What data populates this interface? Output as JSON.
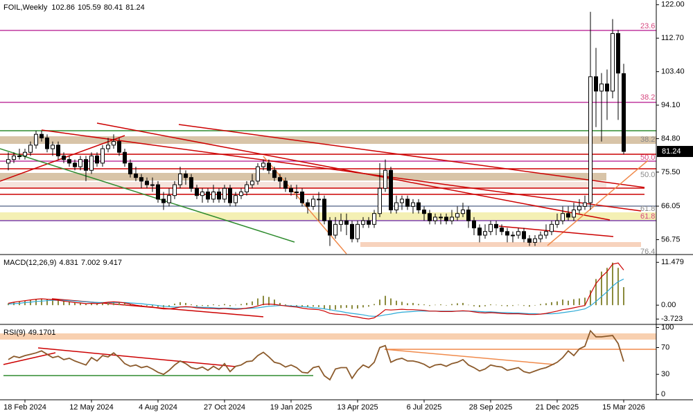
{
  "chart_data": [
    {
      "type": "candlestick",
      "symbol": "FOIL,Weekly",
      "open": [
        78,
        79,
        80,
        80,
        81,
        83,
        86,
        85,
        82,
        83,
        80,
        79,
        78,
        77,
        79,
        76,
        80,
        78,
        82,
        83,
        84,
        81,
        78,
        75,
        74,
        73,
        72,
        72,
        68,
        67,
        69,
        72,
        75,
        74,
        71,
        69,
        70,
        68,
        70,
        68,
        71,
        67,
        69,
        70,
        72,
        73,
        77,
        78,
        76,
        74,
        73,
        71,
        70,
        70,
        67,
        66,
        68,
        68,
        62,
        58,
        61,
        62,
        61,
        57,
        61,
        62,
        61,
        64,
        71,
        76,
        65,
        67,
        68,
        66,
        67,
        65,
        64,
        62,
        63,
        63,
        62,
        63,
        64,
        65,
        62,
        60,
        58,
        59,
        61,
        60,
        59,
        58,
        58,
        59,
        57,
        56,
        57,
        58,
        59,
        61,
        62,
        64,
        63,
        65,
        66,
        67,
        102,
        98,
        100,
        98,
        114,
        102.86
      ],
      "high": [
        81,
        81,
        82,
        82,
        84,
        87,
        87,
        86,
        84,
        84,
        81,
        80,
        79,
        80,
        80,
        81,
        81,
        83,
        85,
        86,
        85,
        82,
        79,
        77,
        75,
        74,
        74,
        73,
        70,
        71,
        73,
        77,
        76,
        75,
        72,
        71,
        71,
        72,
        71,
        72,
        72,
        70,
        71,
        73,
        75,
        78,
        79,
        79,
        77,
        75,
        74,
        72,
        72,
        71,
        68,
        69,
        70,
        69,
        63,
        63,
        64,
        64,
        62,
        62,
        63,
        63,
        65,
        78,
        79,
        77,
        69,
        69,
        69,
        68,
        68,
        66,
        65,
        64,
        64,
        64,
        65,
        66,
        67,
        66,
        63,
        61,
        61,
        62,
        62,
        61,
        60,
        59,
        60,
        60,
        58,
        58,
        59,
        61,
        62,
        64,
        66,
        66,
        67,
        68,
        69,
        120,
        110,
        103,
        104,
        118,
        115,
        105.59
      ],
      "low": [
        76,
        78,
        79,
        79,
        80,
        82,
        84,
        81,
        80,
        79,
        78,
        77,
        76,
        76,
        73,
        75,
        77,
        77,
        81,
        82,
        80,
        77,
        74,
        73,
        71,
        71,
        70,
        67,
        65,
        66,
        68,
        71,
        72,
        70,
        68,
        67,
        67,
        67,
        67,
        67,
        66,
        66,
        68,
        69,
        71,
        72,
        76,
        75,
        73,
        71,
        70,
        69,
        68,
        66,
        64,
        65,
        62,
        61,
        55,
        57,
        59,
        58,
        56,
        56,
        60,
        60,
        60,
        63,
        70,
        64,
        64,
        65,
        65,
        64,
        64,
        62,
        61,
        61,
        61,
        61,
        61,
        62,
        63,
        60,
        58,
        56,
        57,
        58,
        58,
        58,
        56,
        56,
        57,
        56,
        55,
        55,
        56,
        57,
        58,
        60,
        61,
        62,
        62,
        64,
        65,
        65,
        88,
        84,
        90,
        96,
        90,
        80.41
      ],
      "close": [
        79,
        80,
        80,
        81,
        83,
        86,
        85,
        82,
        83,
        80,
        79,
        78,
        77,
        79,
        76,
        80,
        78,
        82,
        83,
        84,
        81,
        78,
        75,
        74,
        73,
        72,
        72,
        68,
        67,
        69,
        72,
        75,
        74,
        71,
        69,
        70,
        68,
        70,
        68,
        71,
        67,
        69,
        70,
        72,
        73,
        77,
        78,
        76,
        74,
        73,
        71,
        70,
        70,
        67,
        66,
        68,
        68,
        62,
        58,
        61,
        62,
        61,
        57,
        61,
        62,
        61,
        64,
        71,
        76,
        65,
        67,
        68,
        66,
        67,
        65,
        64,
        62,
        63,
        63,
        62,
        63,
        64,
        65,
        62,
        60,
        58,
        59,
        61,
        60,
        59,
        58,
        58,
        59,
        57,
        56,
        57,
        58,
        59,
        61,
        62,
        64,
        63,
        65,
        66,
        67,
        102,
        98,
        100,
        98,
        114,
        103,
        81.24
      ],
      "ylim": [
        53,
        123.3
      ],
      "yticks": [
        {
          "value": 122,
          "label": "122.00"
        },
        {
          "value": 112.7,
          "label": "112.70"
        },
        {
          "value": 103.4,
          "label": "103.40"
        },
        {
          "value": 94.1,
          "label": "94.10"
        },
        {
          "value": 84.8,
          "label": "84.80"
        },
        {
          "value": 75.5,
          "label": "75.50"
        },
        66.05,
        56.75
      ],
      "xlim": [
        -1.5,
        116.875
      ],
      "xticks": [
        {
          "value": 3,
          "label": "18 Feb 2024"
        },
        {
          "value": 15,
          "label": "12 May 2024"
        },
        {
          "value": 27,
          "label": "4 Aug 2024"
        },
        {
          "value": 39,
          "label": "27 Oct 2024"
        },
        {
          "value": 51,
          "label": "19 Jan 2025"
        },
        {
          "value": 63,
          "label": "13 Apr 2025"
        },
        {
          "value": 75,
          "label": "6 Jul 2025"
        },
        {
          "value": 87,
          "label": "28 Sep 2025"
        },
        {
          "value": 99,
          "label": "21 Dec 2025"
        },
        {
          "value": 111,
          "label": "15 Mar 2026"
        }
      ],
      "fib_labels": [
        "23.6",
        "38.2",
        "38.2",
        "50.0",
        "50.0",
        "61.8",
        "61.8",
        "76.4"
      ]
    },
    {
      "type": "macd",
      "title": "MACD(12,26,9)",
      "histogram": {
        "color": "#8a8a3c",
        "values": [
          0.5,
          0.8,
          1.0,
          1.2,
          1.4,
          1.6,
          1.7,
          1.6,
          1.5,
          1.3,
          1.1,
          0.9,
          0.7,
          0.6,
          0.4,
          0.5,
          0.4,
          0.6,
          0.8,
          0.9,
          0.8,
          0.6,
          0.3,
          0.0,
          -0.2,
          -0.2,
          -0.3,
          -0.5,
          -0.6,
          -0.5,
          0.4,
          0.8,
          0.6,
          0.2,
          -0.3,
          -0.2,
          -0.3,
          0.2,
          -0.2,
          0.3,
          -0.3,
          0.1,
          0.3,
          0.6,
          1.0,
          1.8,
          2.5,
          2.2,
          1.5,
          0.6,
          0.2,
          -0.2,
          -0.3,
          -0.5,
          -0.6,
          -0.4,
          -0.5,
          -1.0,
          -1.4,
          -1.2,
          -0.8,
          -0.7,
          -1.0,
          -0.9,
          -0.6,
          -0.4,
          0.3,
          1.5,
          2.5,
          1.8,
          1.2,
          0.9,
          0.5,
          0.6,
          0.3,
          0.2,
          -0.2,
          0.1,
          0.2,
          -0.1,
          0.3,
          0.5,
          0.6,
          0.1,
          -0.3,
          -0.5,
          -0.3,
          0.2,
          0.1,
          -0.2,
          -0.3,
          -0.2,
          0.1,
          -0.2,
          -0.4,
          -0.1,
          0.3,
          0.5,
          0.8,
          1.0,
          1.5,
          1.2,
          1.6,
          1.8,
          2.0,
          4.0,
          7.0,
          9.0,
          10.0,
          11.4,
          10.0,
          4.831
        ]
      },
      "series": [
        {
          "color": "#2aa9d6",
          "values": [
            0.3,
            0.4,
            0.5,
            0.7,
            0.8,
            1.0,
            1.1,
            1.2,
            1.3,
            1.3,
            1.3,
            1.2,
            1.1,
            1.0,
            0.9,
            0.8,
            0.7,
            0.7,
            0.7,
            0.7,
            0.7,
            0.7,
            0.6,
            0.5,
            0.4,
            0.2,
            0.1,
            -0.1,
            -0.3,
            -0.4,
            -0.5,
            -0.5,
            -0.5,
            -0.5,
            -0.5,
            -0.6,
            -0.6,
            -0.7,
            -0.8,
            -0.8,
            -0.8,
            -0.9,
            -0.9,
            -0.9,
            -0.8,
            -0.7,
            -0.5,
            -0.3,
            -0.2,
            -0.1,
            -0.1,
            -0.2,
            -0.3,
            -0.4,
            -0.5,
            -0.7,
            -0.8,
            -1.0,
            -1.2,
            -1.5,
            -1.7,
            -2.0,
            -2.2,
            -2.4,
            -2.6,
            -2.9,
            -3.0,
            -2.9,
            -2.6,
            -2.4,
            -2.1,
            -1.9,
            -1.8,
            -1.7,
            -1.6,
            -1.6,
            -1.6,
            -1.6,
            -1.6,
            -1.6,
            -1.6,
            -1.6,
            -1.6,
            -1.6,
            -1.6,
            -1.7,
            -1.8,
            -1.8,
            -1.9,
            -2.0,
            -2.0,
            -2.1,
            -2.1,
            -2.2,
            -2.3,
            -2.3,
            -2.4,
            -2.3,
            -2.3,
            -2.2,
            -2.0,
            -1.8,
            -1.6,
            -1.3,
            -1.0,
            -0.2,
            1.0,
            2.3,
            3.6,
            5.1,
            6.3,
            7.002
          ]
        },
        {
          "color": "#cc0000",
          "values": [
            0.5,
            0.8,
            1.0,
            1.2,
            1.4,
            1.6,
            1.7,
            1.6,
            1.5,
            1.3,
            1.1,
            0.9,
            0.7,
            0.6,
            0.4,
            0.5,
            0.4,
            0.6,
            0.8,
            0.9,
            0.8,
            0.6,
            0.3,
            0.0,
            -0.2,
            -0.4,
            -0.5,
            -0.8,
            -1.0,
            -1.0,
            -0.8,
            -0.5,
            -0.4,
            -0.5,
            -0.7,
            -0.8,
            -0.9,
            -0.9,
            -1.0,
            -0.9,
            -1.0,
            -1.1,
            -1.0,
            -0.8,
            -0.6,
            -0.2,
            0.2,
            0.3,
            0.2,
            0.0,
            -0.2,
            -0.4,
            -0.5,
            -0.8,
            -1.0,
            -1.1,
            -1.2,
            -1.6,
            -2.2,
            -2.4,
            -2.5,
            -2.6,
            -3.0,
            -3.2,
            -3.5,
            -3.7,
            -3.4,
            -2.4,
            -1.2,
            -1.3,
            -1.2,
            -1.1,
            -1.2,
            -1.2,
            -1.3,
            -1.4,
            -1.6,
            -1.6,
            -1.7,
            -1.7,
            -1.7,
            -1.6,
            -1.5,
            -1.6,
            -1.8,
            -2.0,
            -2.1,
            -2.0,
            -2.1,
            -2.2,
            -2.3,
            -2.3,
            -2.3,
            -2.4,
            -2.5,
            -2.5,
            -2.4,
            -2.2,
            -1.9,
            -1.6,
            -1.2,
            -1.0,
            -0.7,
            -0.4,
            -0.1,
            3.0,
            5.8,
            7.6,
            9.0,
            11.0,
            11.3,
            9.417
          ]
        }
      ],
      "ylim": [
        -4.6,
        13.2
      ],
      "yticks": [
        11.479,
        {
          "value": 0,
          "label": "0.00"
        },
        -3.723
      ]
    },
    {
      "type": "rsi",
      "title": "RSI(9)",
      "color": "#8b5a2b",
      "values": [
        52,
        57,
        55,
        58,
        60,
        62,
        65,
        60,
        55,
        57,
        52,
        54,
        50,
        47,
        44,
        55,
        50,
        58,
        56,
        62,
        55,
        46,
        42,
        44,
        40,
        42,
        38,
        33,
        30,
        36,
        44,
        50,
        46,
        40,
        38,
        41,
        36,
        42,
        37,
        46,
        34,
        42,
        44,
        49,
        50,
        58,
        63,
        56,
        48,
        46,
        41,
        44,
        40,
        33,
        32,
        40,
        42,
        28,
        22,
        38,
        40,
        40,
        24,
        36,
        44,
        40,
        48,
        70,
        73,
        48,
        52,
        54,
        50,
        50,
        48,
        45,
        40,
        44,
        45,
        42,
        46,
        48,
        52,
        44,
        40,
        35,
        38,
        44,
        42,
        41,
        36,
        38,
        40,
        34,
        32,
        35,
        38,
        40,
        44,
        48,
        55,
        65,
        58,
        68,
        72,
        95,
        86,
        86,
        87,
        88,
        76,
        49.1701
      ],
      "ylim": [
        -8,
        101.5
      ],
      "yticks": [
        100,
        70,
        30,
        0
      ]
    }
  ]
}
